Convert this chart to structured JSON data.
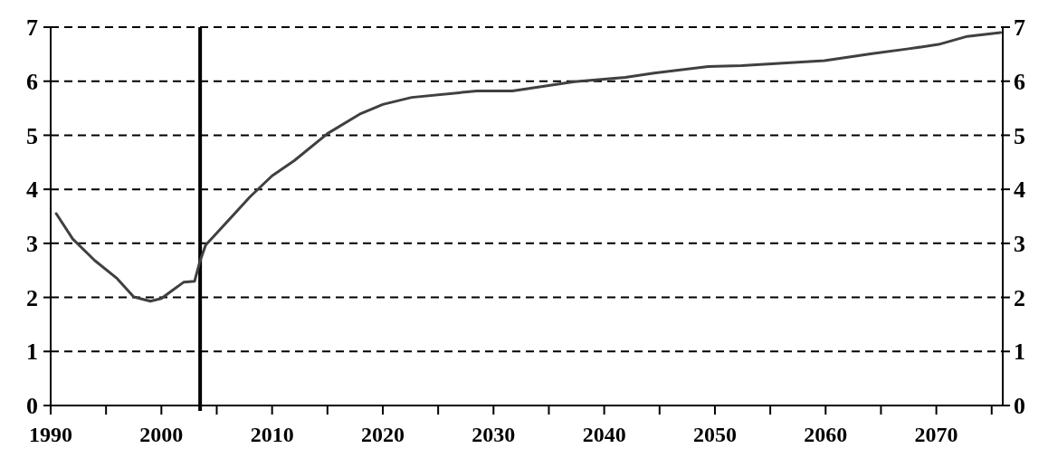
{
  "chart_data": {
    "type": "line",
    "x": [
      1990.5,
      1992,
      1994,
      1996,
      1997.5,
      1999,
      2000,
      2001,
      2002,
      2003,
      2003.5,
      2004,
      2005,
      2008,
      2010,
      2012,
      2015,
      2018,
      2020,
      2022.6,
      2028.5,
      2031.7,
      2037.3,
      2041.9,
      2044.5,
      2049.4,
      2052.4,
      2059.9,
      2064.2,
      2067.5,
      2070.2,
      2072.8,
      2075.8
    ],
    "series": [
      {
        "color": "#404040",
        "values": [
          3.55,
          3.08,
          2.68,
          2.35,
          2.01,
          1.93,
          1.98,
          2.13,
          2.28,
          2.3,
          2.68,
          2.97,
          3.19,
          3.86,
          4.25,
          4.53,
          5.03,
          5.4,
          5.57,
          5.7,
          5.82,
          5.82,
          5.99,
          6.07,
          6.15,
          6.27,
          6.29,
          6.38,
          6.51,
          6.6,
          6.68,
          6.83,
          6.9
        ]
      }
    ],
    "xlim": [
      1990,
      2076
    ],
    "xticks": [
      1990,
      {
        "value": 1995,
        "label": null
      },
      2000,
      {
        "value": 2005,
        "label": null
      },
      2010,
      {
        "value": 2015,
        "label": null
      },
      2020,
      {
        "value": 2025,
        "label": null
      },
      2030,
      {
        "value": 2035,
        "label": null
      },
      2040,
      {
        "value": 2045,
        "label": null
      },
      2050,
      {
        "value": 2055,
        "label": null
      },
      2060,
      {
        "value": 2065,
        "label": null
      },
      2070,
      {
        "value": 2075,
        "label": null
      }
    ],
    "ylim": [
      0,
      7
    ],
    "yticks": [
      0,
      1,
      2,
      3,
      4,
      5,
      6,
      7
    ],
    "y2lim": [
      0,
      7
    ],
    "y2ticks": [
      0,
      1,
      2,
      3,
      4,
      5,
      6,
      7
    ],
    "ref_lines": [
      {
        "axis": "x",
        "value": 2003.5,
        "color": "#000000"
      }
    ],
    "grid": "y",
    "line_style": "solid",
    "marker": "none"
  }
}
